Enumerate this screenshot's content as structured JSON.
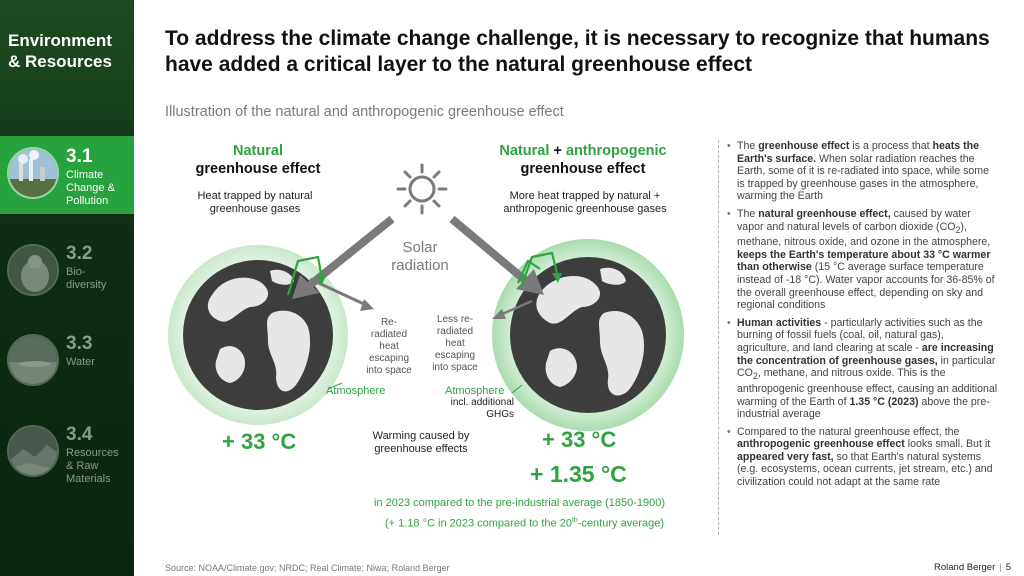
{
  "sidebar": {
    "title_line1": "Environment",
    "title_line2": "& Resources",
    "items": [
      {
        "num": "3.1",
        "label": "Climate\nChange &\nPollution",
        "active": true
      },
      {
        "num": "3.2",
        "label": "Bio-\ndiversity",
        "active": false
      },
      {
        "num": "3.3",
        "label": "Water",
        "active": false
      },
      {
        "num": "3.4",
        "label": "Resources\n& Raw\nMaterials",
        "active": false
      }
    ]
  },
  "title": "To address the climate change challenge, it is necessary to recognize that humans have added a critical layer to the natural greenhouse effect",
  "subtitle": "Illustration of the natural and anthropogenic greenhouse effect",
  "illustration": {
    "left": {
      "heading_green": "Natural",
      "heading_black": "greenhouse effect",
      "desc": "Heat trapped by natural greenhouse gases",
      "reradiated": "Re-\nradiated\nheat\nescaping\ninto space",
      "atmosphere": "Atmosphere",
      "value": "+ 33 °C"
    },
    "right": {
      "heading_green1": "Natural",
      "heading_plus": " + ",
      "heading_green2": "anthropogenic",
      "heading_black": "greenhouse effect",
      "desc": "More heat trapped by natural + anthropogenic greenhouse gases",
      "reradiated": "Less re-\nradiated\nheat\nescaping\ninto space",
      "atmosphere": "Atmosphere",
      "atmosphere_sub": "incl. additional\nGHGs",
      "value": "+ 33 °C",
      "extra_value": "+ 1.35 °C"
    },
    "solar": "Solar\nradiation",
    "warming": "Warming caused by\ngreenhouse effects",
    "note1": "in 2023 compared to the pre-industrial average (1850-1900)",
    "note2_pre": "(+ 1.18 °C in 2023 compared to the 20",
    "note2_sup": "th",
    "note2_post": "-century average)"
  },
  "bullets": [
    {
      "html": "The <b>greenhouse effect</b> is a process that <b>heats the Earth's surface.</b> When solar radiation reaches the Earth, some of it is re-radiated into space, while some is trapped by greenhouse gases in the atmosphere, warming the Earth"
    },
    {
      "html": "The <b>natural greenhouse effect,</b> caused by water vapor and natural levels of carbon dioxide (CO<sub>2</sub>), methane, nitrous oxide, and ozone in the atmosphere, <b>keeps the Earth's temperature about 33 °C warmer than otherwise</b> (15 °C average surface temperature instead of -18 °C). Water vapor accounts for 36-85% of the overall greenhouse effect, depending on sky and regional conditions"
    },
    {
      "html": "<b>Human activities</b> - particularly activities such as the burning of fossil fuels (coal, oil, natural gas), agriculture, and land clearing at scale - <b>are increasing the concentration of greenhouse gases,</b> in particular CO<sub>2</sub>, methane, and nitrous oxide. This is the anthropogenic greenhouse effect, causing an additional warming of the Earth of <b>1.35 °C (2023)</b> above the pre-industrial average"
    },
    {
      "html": "Compared to the natural greenhouse effect, the <b>anthropogenic greenhouse effect</b> looks small. But it <b>appeared very fast,</b> so that Earth's natural systems (e.g. ecosystems, ocean currents, jet stream, etc.) and civilization could not adapt at the same rate"
    }
  ],
  "source": "Source: NOAA/Climate.gov; NRDC; Real Climate; Niwa; Roland Berger",
  "brand": "Roland Berger",
  "page_number": "5",
  "colors": {
    "accent": "#2ea43f",
    "sidebar_dark": "#0f2d15",
    "sidebar_active": "#27a23d"
  }
}
